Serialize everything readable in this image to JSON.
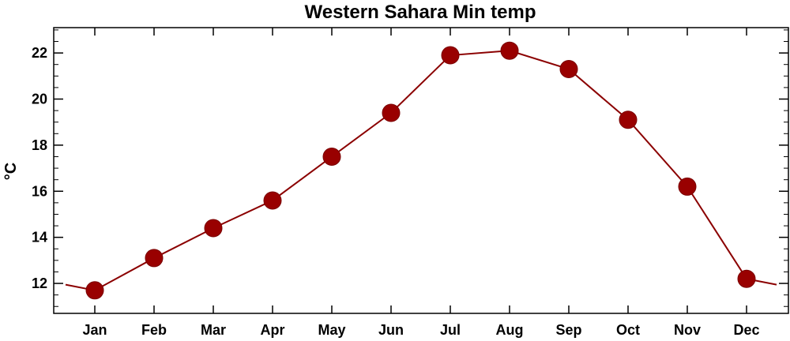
{
  "chart_data": {
    "type": "line",
    "title": "Western Sahara Min temp",
    "xlabel": "",
    "ylabel": "°C",
    "categories": [
      "Jan",
      "Feb",
      "Mar",
      "Apr",
      "May",
      "Jun",
      "Jul",
      "Aug",
      "Sep",
      "Oct",
      "Nov",
      "Dec"
    ],
    "series": [
      {
        "values": [
          11.7,
          13.1,
          14.4,
          15.6,
          17.5,
          19.4,
          21.9,
          22.1,
          21.3,
          19.1,
          16.2,
          12.2
        ]
      }
    ],
    "ylim": [
      10.7,
      23.1
    ],
    "yticks": [
      "12",
      "14",
      "16",
      "18",
      "20",
      "22"
    ],
    "ytick_values": [
      12,
      14,
      16,
      18,
      20,
      22
    ],
    "grid": false,
    "legend": "none",
    "marker": "filled-circle",
    "colors": {
      "line": "#8b0000",
      "marker": "#990000",
      "axes": "#000000",
      "background": "#ffffff"
    }
  }
}
